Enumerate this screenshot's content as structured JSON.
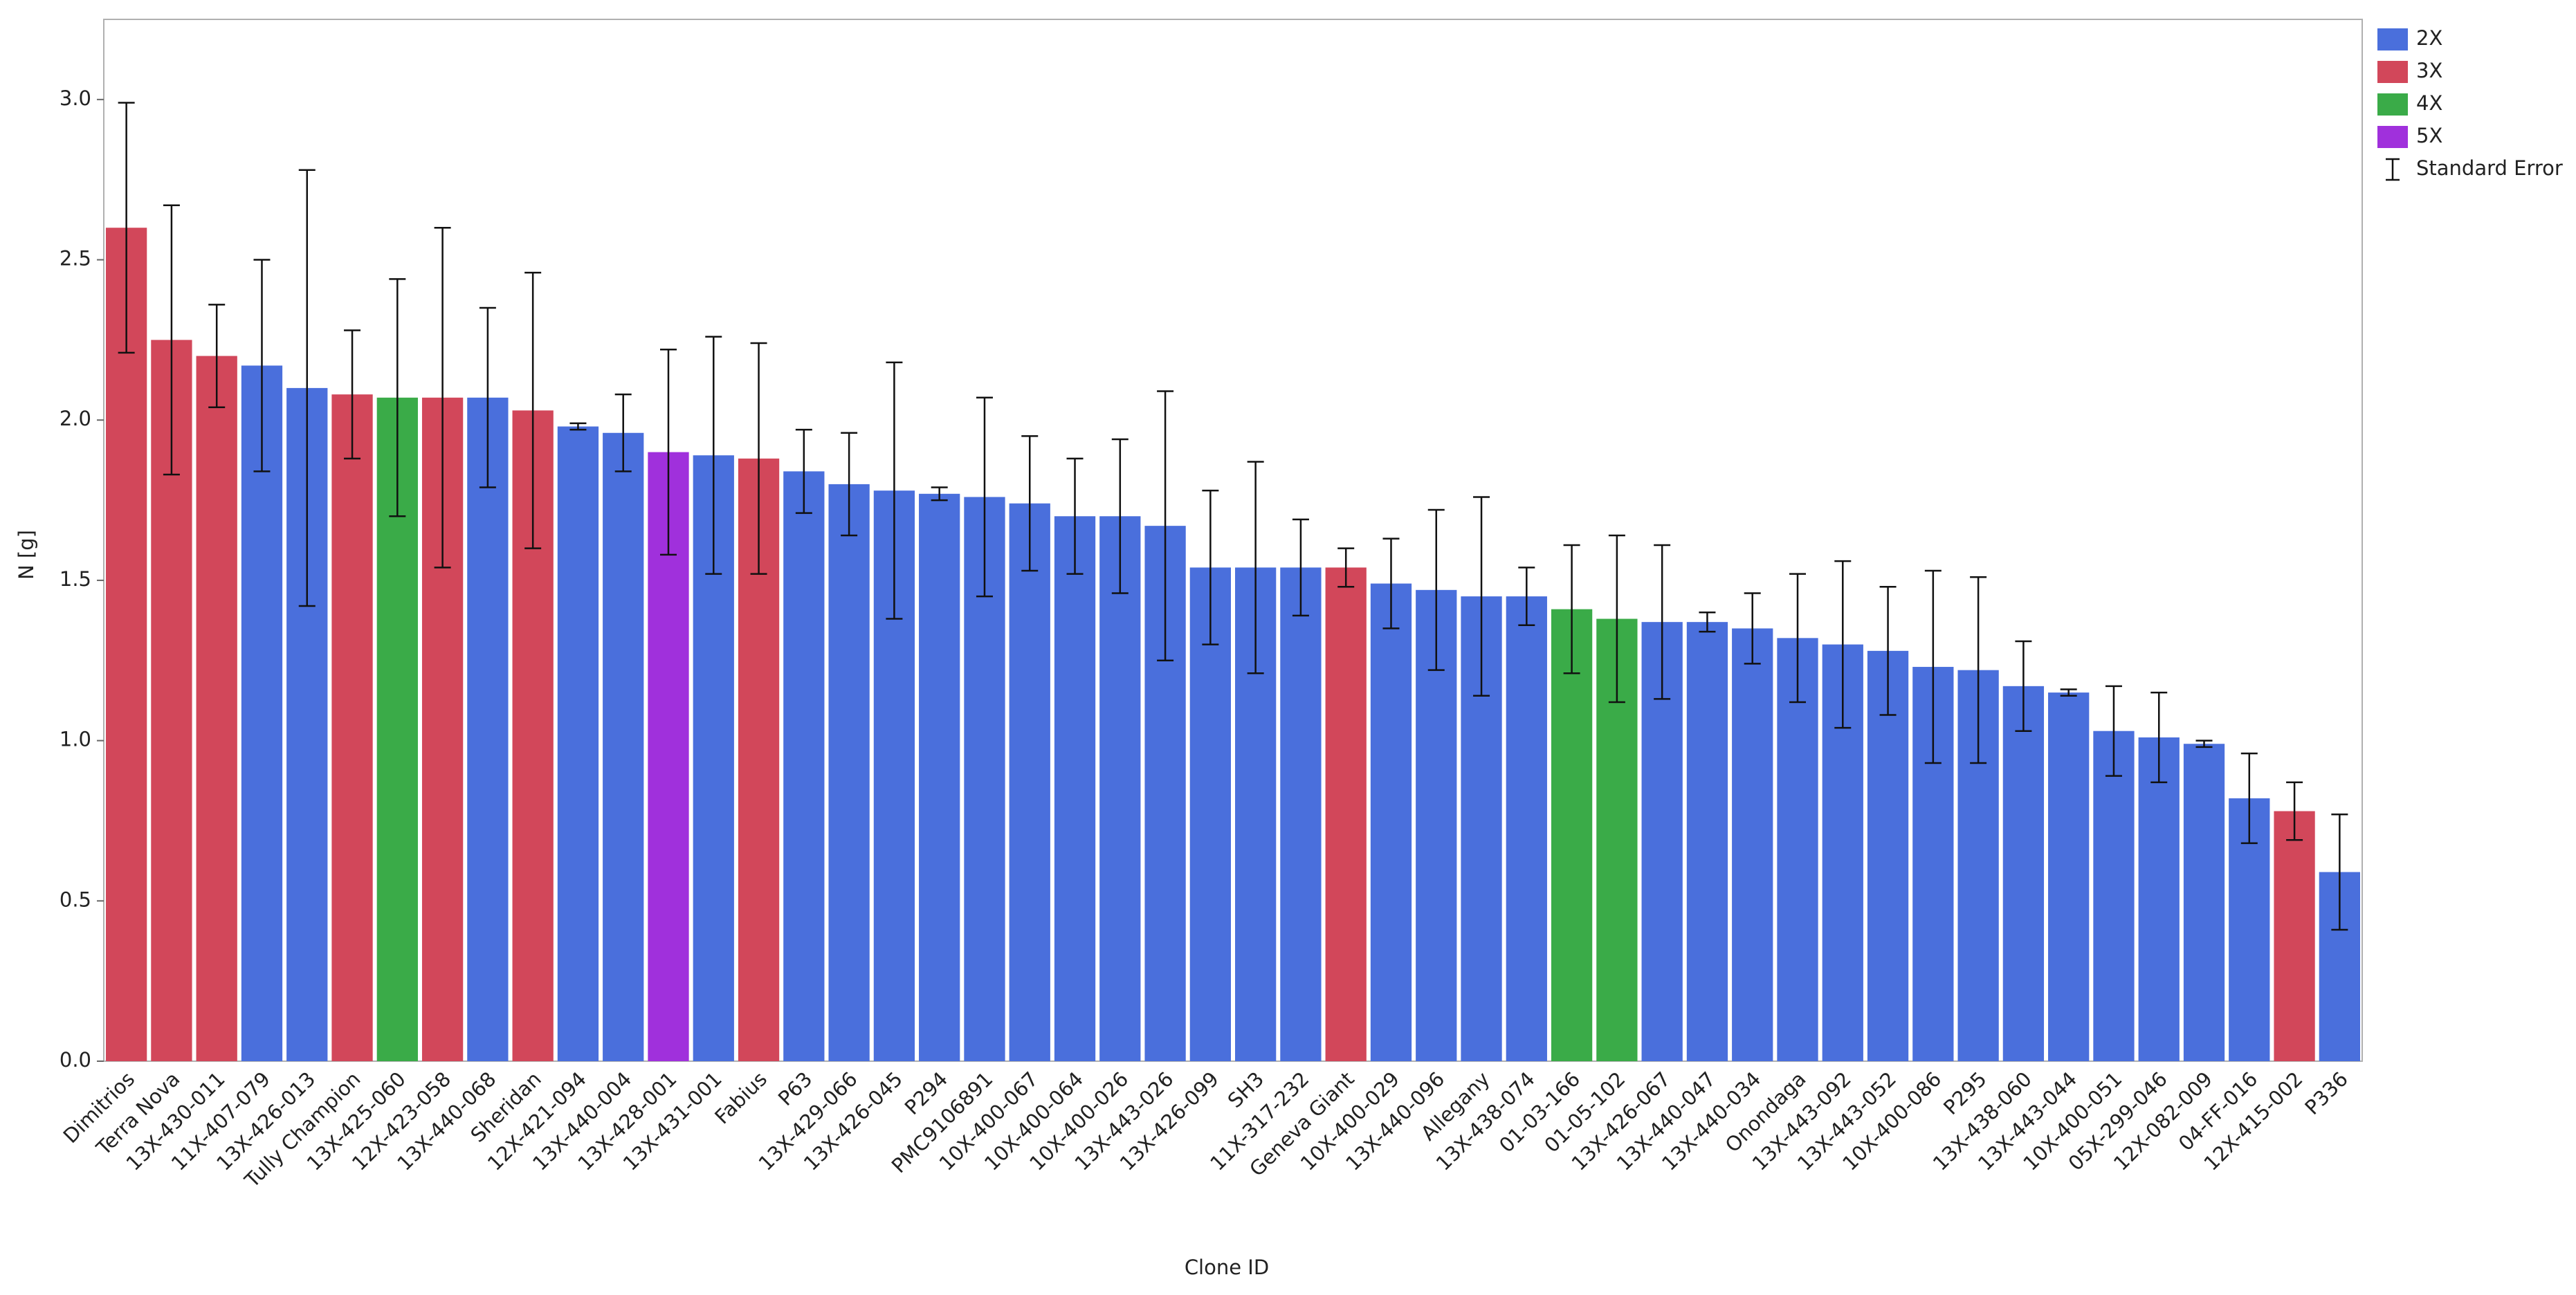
{
  "chart_data": {
    "type": "bar",
    "x_label": "Clone ID",
    "y_label": "N [g]",
    "categories": [
      "Dimitrios",
      "Terra Nova",
      "13X-430-011",
      "11X-407-079",
      "13X-426-013",
      "Tully Champion",
      "13X-425-060",
      "12X-423-058",
      "13X-440-068",
      "Sheridan",
      "12X-421-094",
      "13X-440-004",
      "13X-428-001",
      "13X-431-001",
      "Fabius",
      "P63",
      "13X-429-066",
      "13X-426-045",
      "P294",
      "PMC9106891",
      "10X-400-067",
      "10X-400-064",
      "10X-400-026",
      "13X-443-026",
      "13X-426-099",
      "SH3",
      "11X-317-232",
      "Geneva Giant",
      "10X-400-029",
      "13X-440-096",
      "Allegany",
      "13X-438-074",
      "01-03-166",
      "01-05-102",
      "13X-426-067",
      "13X-440-047",
      "13X-440-034",
      "Onondaga",
      "13X-443-092",
      "13X-443-052",
      "10X-400-086",
      "P295",
      "13X-438-060",
      "13X-443-044",
      "10X-400-051",
      "05X-299-046",
      "12X-082-009",
      "04-FF-016",
      "12X-415-002",
      "P336"
    ],
    "series": [
      {
        "name": "2X",
        "color": "#4a6fdc",
        "values": [
          null,
          null,
          null,
          2.17,
          2.1,
          null,
          null,
          null,
          2.07,
          null,
          1.98,
          1.96,
          null,
          1.89,
          null,
          1.84,
          1.8,
          1.78,
          1.77,
          1.76,
          1.74,
          1.7,
          1.7,
          1.67,
          1.54,
          1.54,
          1.54,
          null,
          1.49,
          1.47,
          1.45,
          1.45,
          null,
          null,
          1.37,
          1.37,
          1.35,
          1.32,
          1.3,
          1.28,
          1.23,
          1.22,
          1.17,
          1.15,
          1.03,
          1.01,
          0.99,
          0.82,
          null,
          0.59
        ],
        "errors": [
          null,
          null,
          null,
          0.33,
          0.68,
          null,
          null,
          null,
          0.28,
          null,
          0.01,
          0.12,
          null,
          0.37,
          null,
          0.13,
          0.16,
          0.4,
          0.02,
          0.31,
          0.21,
          0.18,
          0.24,
          0.42,
          0.24,
          0.33,
          0.15,
          null,
          0.14,
          0.25,
          0.31,
          0.09,
          null,
          null,
          0.24,
          0.03,
          0.11,
          0.2,
          0.26,
          0.2,
          0.3,
          0.29,
          0.14,
          0.01,
          0.14,
          0.14,
          0.01,
          0.14,
          null,
          0.18
        ]
      },
      {
        "name": "3X",
        "color": "#d2475a",
        "values": [
          2.6,
          2.25,
          2.2,
          null,
          null,
          2.08,
          null,
          2.07,
          null,
          2.03,
          null,
          null,
          null,
          null,
          1.88,
          null,
          null,
          null,
          null,
          null,
          null,
          null,
          null,
          null,
          null,
          null,
          null,
          1.54,
          null,
          null,
          null,
          null,
          null,
          null,
          null,
          null,
          null,
          null,
          null,
          null,
          null,
          null,
          null,
          null,
          null,
          null,
          null,
          null,
          0.78,
          null
        ],
        "errors": [
          0.39,
          0.42,
          0.16,
          null,
          null,
          0.2,
          null,
          0.53,
          null,
          0.43,
          null,
          null,
          null,
          null,
          0.36,
          null,
          null,
          null,
          null,
          null,
          null,
          null,
          null,
          null,
          null,
          null,
          null,
          0.06,
          null,
          null,
          null,
          null,
          null,
          null,
          null,
          null,
          null,
          null,
          null,
          null,
          null,
          null,
          null,
          null,
          null,
          null,
          null,
          null,
          0.09,
          null
        ]
      },
      {
        "name": "4X",
        "color": "#3aab48",
        "values": [
          null,
          null,
          null,
          null,
          null,
          null,
          2.07,
          null,
          null,
          null,
          null,
          null,
          null,
          null,
          null,
          null,
          null,
          null,
          null,
          null,
          null,
          null,
          null,
          null,
          null,
          null,
          null,
          null,
          null,
          null,
          null,
          null,
          1.41,
          1.38,
          null,
          null,
          null,
          null,
          null,
          null,
          null,
          null,
          null,
          null,
          null,
          null,
          null,
          null,
          null,
          null
        ],
        "errors": [
          null,
          null,
          null,
          null,
          null,
          null,
          0.37,
          null,
          null,
          null,
          null,
          null,
          null,
          null,
          null,
          null,
          null,
          null,
          null,
          null,
          null,
          null,
          null,
          null,
          null,
          null,
          null,
          null,
          null,
          null,
          null,
          null,
          0.2,
          0.26,
          null,
          null,
          null,
          null,
          null,
          null,
          null,
          null,
          null,
          null,
          null,
          null,
          null,
          null,
          null,
          null
        ]
      },
      {
        "name": "5X",
        "color": "#a030dc",
        "values": [
          null,
          null,
          null,
          null,
          null,
          null,
          null,
          null,
          null,
          null,
          null,
          null,
          1.9,
          null,
          null,
          null,
          null,
          null,
          null,
          null,
          null,
          null,
          null,
          null,
          null,
          null,
          null,
          null,
          null,
          null,
          null,
          null,
          null,
          null,
          null,
          null,
          null,
          null,
          null,
          null,
          null,
          null,
          null,
          null,
          null,
          null,
          null,
          null,
          null,
          null
        ],
        "errors": [
          null,
          null,
          null,
          null,
          null,
          null,
          null,
          null,
          null,
          null,
          null,
          null,
          0.32,
          null,
          null,
          null,
          null,
          null,
          null,
          null,
          null,
          null,
          null,
          null,
          null,
          null,
          null,
          null,
          null,
          null,
          null,
          null,
          null,
          null,
          null,
          null,
          null,
          null,
          null,
          null,
          null,
          null,
          null,
          null,
          null,
          null,
          null,
          null,
          null,
          null
        ]
      }
    ],
    "error_legend_label": "Standard Error",
    "ylim": [
      0,
      3.25
    ],
    "yticks": [
      {
        "value": 0,
        "label": "0.0"
      },
      0.5,
      {
        "value": 1,
        "label": "1.0"
      },
      1.5,
      {
        "value": 2,
        "label": "2.0"
      },
      2.5,
      {
        "value": 3,
        "label": "3.0"
      }
    ],
    "legend_position": "top-right"
  }
}
